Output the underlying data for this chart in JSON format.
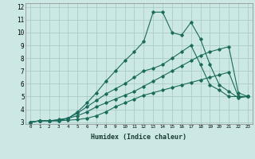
{
  "xlabel": "Humidex (Indice chaleur)",
  "bg_color": "#cce8e4",
  "grid_color": "#aaccc8",
  "line_color": "#1a6b5a",
  "xlim": [
    -0.5,
    23.5
  ],
  "ylim": [
    2.85,
    12.3
  ],
  "xticks": [
    0,
    1,
    2,
    3,
    4,
    5,
    6,
    7,
    8,
    9,
    10,
    11,
    12,
    13,
    14,
    15,
    16,
    17,
    18,
    19,
    20,
    21,
    22,
    23
  ],
  "yticks": [
    3,
    4,
    5,
    6,
    7,
    8,
    9,
    10,
    11,
    12
  ],
  "series": [
    [
      3.0,
      3.1,
      3.1,
      3.1,
      3.15,
      3.2,
      3.3,
      3.5,
      3.8,
      4.2,
      4.5,
      4.8,
      5.1,
      5.3,
      5.5,
      5.7,
      5.9,
      6.1,
      6.3,
      6.5,
      6.7,
      6.9,
      5.0,
      5.0
    ],
    [
      3.0,
      3.1,
      3.1,
      3.2,
      3.3,
      3.5,
      3.8,
      4.2,
      4.5,
      4.8,
      5.1,
      5.4,
      5.8,
      6.2,
      6.6,
      7.0,
      7.4,
      7.8,
      8.2,
      8.5,
      8.7,
      8.9,
      5.3,
      5.0
    ],
    [
      3.0,
      3.1,
      3.1,
      3.15,
      3.3,
      3.7,
      4.2,
      4.7,
      5.2,
      5.6,
      6.0,
      6.5,
      7.0,
      7.2,
      7.5,
      8.0,
      8.5,
      9.0,
      7.5,
      5.9,
      5.5,
      5.0,
      5.0,
      5.0
    ],
    [
      3.0,
      3.1,
      3.1,
      3.1,
      3.3,
      3.8,
      4.5,
      5.3,
      6.2,
      7.0,
      7.8,
      8.5,
      9.3,
      11.6,
      11.6,
      10.0,
      9.8,
      10.8,
      9.5,
      7.5,
      5.9,
      5.4,
      4.9,
      5.0
    ]
  ]
}
